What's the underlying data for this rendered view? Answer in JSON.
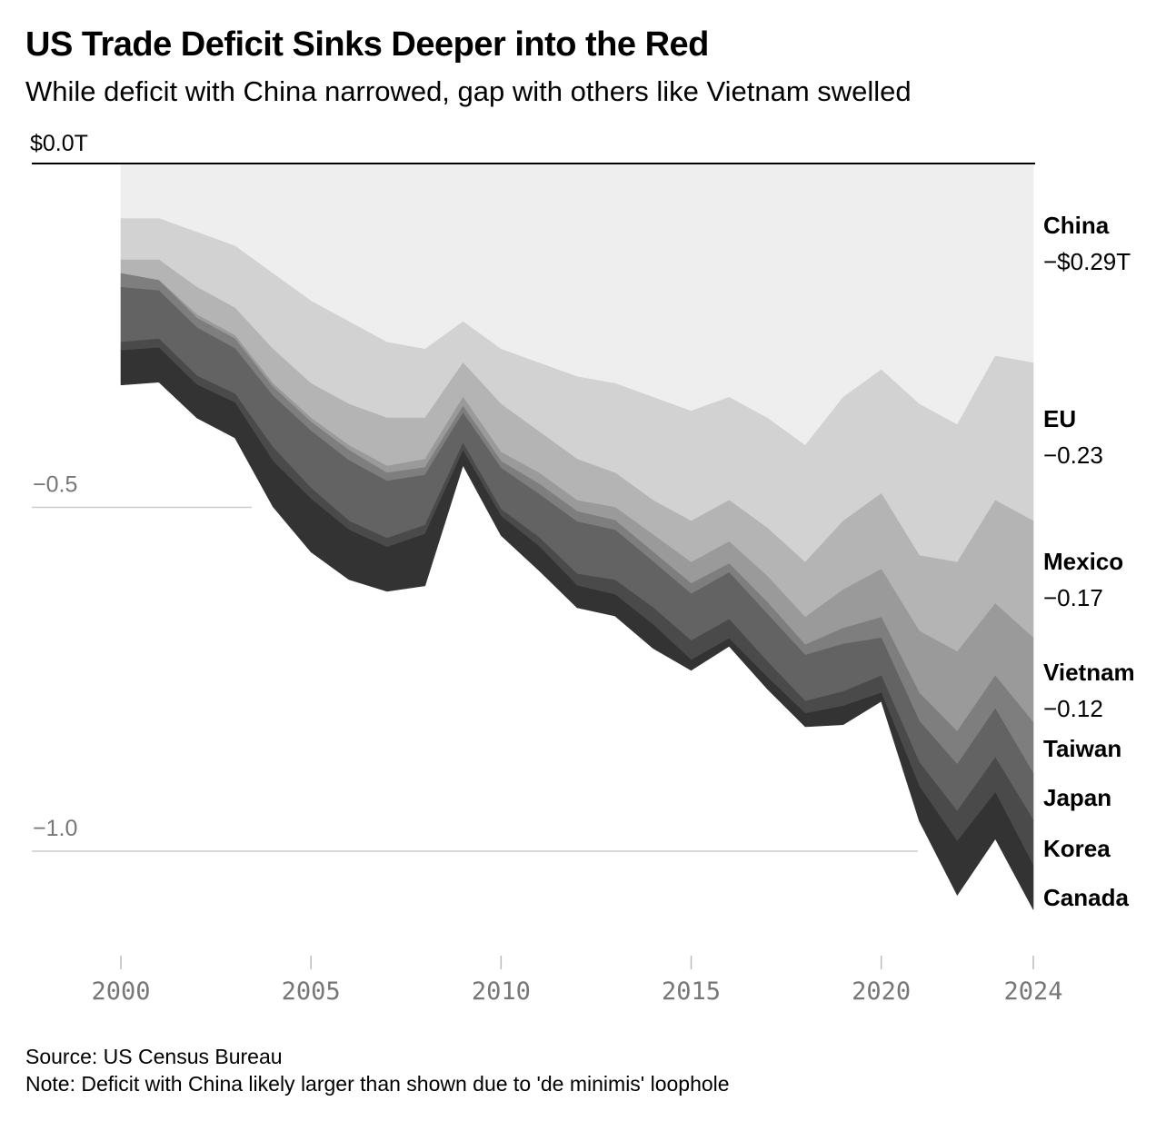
{
  "header": {
    "title": "US Trade Deficit Sinks Deeper into the Red",
    "subtitle": "While deficit with China narrowed, gap with others like Vietnam swelled"
  },
  "footer": {
    "source": "Source: US Census Bureau",
    "note": "Note: Deficit with China likely larger than shown due to 'de minimis' loophole"
  },
  "chart_data": {
    "type": "area",
    "stacked": true,
    "x": [
      2000,
      2001,
      2002,
      2003,
      2004,
      2005,
      2006,
      2007,
      2008,
      2009,
      2010,
      2011,
      2012,
      2013,
      2014,
      2015,
      2016,
      2017,
      2018,
      2019,
      2020,
      2021,
      2022,
      2023,
      2024
    ],
    "ylim": [
      -1.1,
      0
    ],
    "y_ticks": [
      {
        "value": 0,
        "label": "$0.0T"
      },
      {
        "value": -0.5,
        "label": "−0.5"
      },
      {
        "value": -1.0,
        "label": "−1.0"
      }
    ],
    "x_ticks": [
      {
        "value": 2000,
        "label": "2000"
      },
      {
        "value": 2005,
        "label": "2005"
      },
      {
        "value": 2010,
        "label": "2010"
      },
      {
        "value": 2015,
        "label": "2015"
      },
      {
        "value": 2020,
        "label": "2020"
      },
      {
        "value": 2024,
        "label": "2024"
      }
    ],
    "series": [
      {
        "name": "China",
        "end_label": "−$0.29T",
        "color": "#eeeeee",
        "values": [
          -0.08,
          -0.08,
          -0.1,
          -0.12,
          -0.16,
          -0.2,
          -0.23,
          -0.26,
          -0.27,
          -0.23,
          -0.27,
          -0.29,
          -0.31,
          -0.32,
          -0.34,
          -0.36,
          -0.34,
          -0.37,
          -0.41,
          -0.34,
          -0.3,
          -0.35,
          -0.38,
          -0.28,
          -0.29
        ]
      },
      {
        "name": "EU",
        "end_label": "−0.23",
        "color": "#d2d2d2",
        "values": [
          -0.06,
          -0.06,
          -0.08,
          -0.09,
          -0.11,
          -0.12,
          -0.12,
          -0.11,
          -0.1,
          -0.06,
          -0.08,
          -0.1,
          -0.12,
          -0.13,
          -0.15,
          -0.16,
          -0.15,
          -0.16,
          -0.17,
          -0.18,
          -0.18,
          -0.22,
          -0.2,
          -0.21,
          -0.23
        ]
      },
      {
        "name": "Mexico",
        "end_label": "−0.17",
        "color": "#b4b4b4",
        "values": [
          -0.02,
          -0.03,
          -0.04,
          -0.04,
          -0.05,
          -0.05,
          -0.06,
          -0.07,
          -0.06,
          -0.05,
          -0.07,
          -0.06,
          -0.06,
          -0.05,
          -0.05,
          -0.06,
          -0.06,
          -0.07,
          -0.08,
          -0.1,
          -0.11,
          -0.11,
          -0.13,
          -0.15,
          -0.17
        ]
      },
      {
        "name": "Vietnam",
        "end_label": "−0.12",
        "color": "#9a9a9a",
        "values": [
          0,
          0,
          -0.005,
          -0.005,
          -0.005,
          -0.006,
          -0.007,
          -0.01,
          -0.012,
          -0.013,
          -0.013,
          -0.016,
          -0.016,
          -0.019,
          -0.025,
          -0.031,
          -0.032,
          -0.038,
          -0.04,
          -0.056,
          -0.07,
          -0.09,
          -0.116,
          -0.105,
          -0.123
        ]
      },
      {
        "name": "Taiwan",
        "end_label": "",
        "color": "#7e7e7e",
        "values": [
          -0.02,
          -0.015,
          -0.014,
          -0.014,
          -0.013,
          -0.013,
          -0.015,
          -0.012,
          -0.011,
          -0.01,
          -0.01,
          -0.015,
          -0.015,
          -0.014,
          -0.014,
          -0.015,
          -0.013,
          -0.017,
          -0.015,
          -0.023,
          -0.03,
          -0.041,
          -0.048,
          -0.048,
          -0.074
        ]
      },
      {
        "name": "Japan",
        "end_label": "",
        "color": "#636363",
        "values": [
          -0.08,
          -0.07,
          -0.07,
          -0.066,
          -0.075,
          -0.083,
          -0.088,
          -0.083,
          -0.073,
          -0.044,
          -0.06,
          -0.063,
          -0.076,
          -0.073,
          -0.067,
          -0.068,
          -0.068,
          -0.069,
          -0.067,
          -0.069,
          -0.055,
          -0.06,
          -0.068,
          -0.071,
          -0.068
        ]
      },
      {
        "name": "Korea",
        "end_label": "",
        "color": "#4a4a4a",
        "values": [
          -0.012,
          -0.013,
          -0.013,
          -0.013,
          -0.02,
          -0.016,
          -0.013,
          -0.013,
          -0.013,
          -0.011,
          -0.01,
          -0.013,
          -0.017,
          -0.021,
          -0.025,
          -0.028,
          -0.028,
          -0.023,
          -0.018,
          -0.021,
          -0.025,
          -0.035,
          -0.044,
          -0.051,
          -0.066
        ]
      },
      {
        "name": "Canada",
        "end_label": "",
        "color": "#333333",
        "values": [
          -0.05,
          -0.05,
          -0.048,
          -0.051,
          -0.066,
          -0.077,
          -0.072,
          -0.064,
          -0.075,
          -0.021,
          -0.028,
          -0.035,
          -0.032,
          -0.031,
          -0.034,
          -0.015,
          -0.011,
          -0.017,
          -0.019,
          -0.027,
          -0.012,
          -0.05,
          -0.078,
          -0.067,
          -0.064
        ]
      }
    ]
  },
  "colors": {
    "axis": "#000000",
    "gridline": "#cccccc",
    "tick_label": "#777777"
  }
}
